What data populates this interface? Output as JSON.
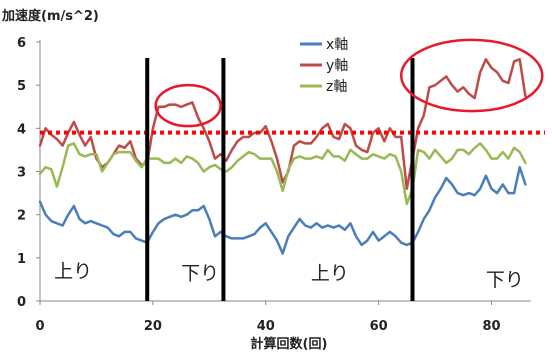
{
  "chart_data": {
    "type": "line",
    "title": "",
    "ylabel": "加速度(m/s^2)",
    "xlabel": "計算回数(回)",
    "xlim": [
      0,
      87
    ],
    "ylim": [
      0,
      6
    ],
    "x_ticks": [
      0,
      20,
      40,
      60,
      80
    ],
    "y_ticks": [
      0,
      1,
      2,
      3,
      4,
      5,
      6
    ],
    "grid": false,
    "legend_position": "top-center",
    "series": [
      {
        "name": "x軸",
        "color": "#4a7ebb",
        "values": [
          2.3,
          2.0,
          1.85,
          1.8,
          1.75,
          2.0,
          2.2,
          1.9,
          1.8,
          1.85,
          1.8,
          1.75,
          1.7,
          1.55,
          1.5,
          1.6,
          1.6,
          1.45,
          1.4,
          1.35,
          1.6,
          1.8,
          1.9,
          1.95,
          2.0,
          1.95,
          2.0,
          2.1,
          2.1,
          2.2,
          1.9,
          1.5,
          1.6,
          1.5,
          1.45,
          1.45,
          1.45,
          1.5,
          1.55,
          1.7,
          1.8,
          1.6,
          1.4,
          1.1,
          1.5,
          1.7,
          1.9,
          1.75,
          1.7,
          1.8,
          1.7,
          1.75,
          1.7,
          1.75,
          1.65,
          1.8,
          1.5,
          1.3,
          1.4,
          1.6,
          1.4,
          1.5,
          1.6,
          1.5,
          1.35,
          1.3,
          1.35,
          1.6,
          1.9,
          2.1,
          2.4,
          2.6,
          2.85,
          2.7,
          2.5,
          2.45,
          2.5,
          2.45,
          2.6,
          2.9,
          2.6,
          2.5,
          2.7,
          2.5,
          2.5,
          3.1,
          2.7
        ]
      },
      {
        "name": "y軸",
        "color": "#be4b48",
        "values": [
          3.6,
          4.0,
          3.85,
          3.75,
          3.6,
          3.9,
          4.15,
          3.85,
          3.6,
          3.8,
          3.3,
          3.1,
          3.2,
          3.4,
          3.6,
          3.55,
          3.7,
          3.3,
          3.15,
          3.2,
          4.0,
          4.5,
          4.5,
          4.55,
          4.55,
          4.5,
          4.55,
          4.6,
          4.25,
          4.0,
          3.7,
          3.3,
          3.4,
          3.25,
          3.5,
          3.7,
          3.8,
          3.8,
          3.9,
          3.9,
          4.05,
          3.7,
          3.3,
          2.75,
          3.0,
          3.6,
          3.7,
          3.65,
          3.65,
          3.8,
          4.0,
          4.1,
          3.8,
          3.75,
          4.1,
          4.0,
          3.6,
          3.5,
          3.45,
          3.9,
          4.0,
          3.7,
          4.0,
          3.8,
          3.8,
          2.6,
          3.3,
          4.0,
          4.3,
          4.95,
          5.0,
          5.1,
          5.2,
          5.0,
          4.85,
          4.95,
          4.8,
          4.7,
          5.3,
          5.6,
          5.4,
          5.3,
          5.1,
          5.05,
          5.55,
          5.6,
          4.75
        ]
      },
      {
        "name": "z軸",
        "color": "#98b954",
        "values": [
          2.95,
          3.1,
          3.05,
          2.65,
          3.1,
          3.6,
          3.65,
          3.4,
          3.35,
          3.4,
          3.4,
          3.0,
          3.2,
          3.4,
          3.45,
          3.45,
          3.45,
          3.25,
          3.1,
          3.3,
          3.3,
          3.3,
          3.2,
          3.2,
          3.3,
          3.2,
          3.35,
          3.3,
          3.2,
          3.0,
          3.1,
          3.15,
          3.05,
          3.0,
          3.1,
          3.25,
          3.35,
          3.45,
          3.4,
          3.3,
          3.3,
          3.3,
          3.0,
          2.55,
          3.05,
          3.3,
          3.35,
          3.3,
          3.3,
          3.35,
          3.3,
          3.5,
          3.35,
          3.35,
          3.25,
          3.5,
          3.4,
          3.3,
          3.3,
          3.4,
          3.35,
          3.3,
          3.4,
          3.35,
          3.0,
          2.25,
          2.6,
          3.5,
          3.45,
          3.3,
          3.5,
          3.35,
          3.2,
          3.3,
          3.5,
          3.5,
          3.4,
          3.55,
          3.65,
          3.5,
          3.3,
          3.3,
          3.45,
          3.3,
          3.55,
          3.45,
          3.2
        ]
      }
    ],
    "reference_line": {
      "y": 3.9,
      "color": "#ff0000",
      "style": "dotted"
    },
    "phase_dividers": [
      19,
      32.5,
      66
    ],
    "phase_labels": [
      {
        "text": "上り",
        "x": 2.5,
        "y": 0.55
      },
      {
        "text": "下り",
        "x": 25,
        "y": 0.5
      },
      {
        "text": "上り",
        "x": 48,
        "y": 0.5
      },
      {
        "text": "下り",
        "x": 79,
        "y": 0.35
      }
    ],
    "highlight_ellipses": [
      {
        "x_range": [
          20.5,
          32
        ],
        "y_range": [
          4.05,
          5.0
        ]
      },
      {
        "x_range": [
          64,
          89
        ],
        "y_range": [
          4.4,
          6.05
        ]
      }
    ]
  }
}
